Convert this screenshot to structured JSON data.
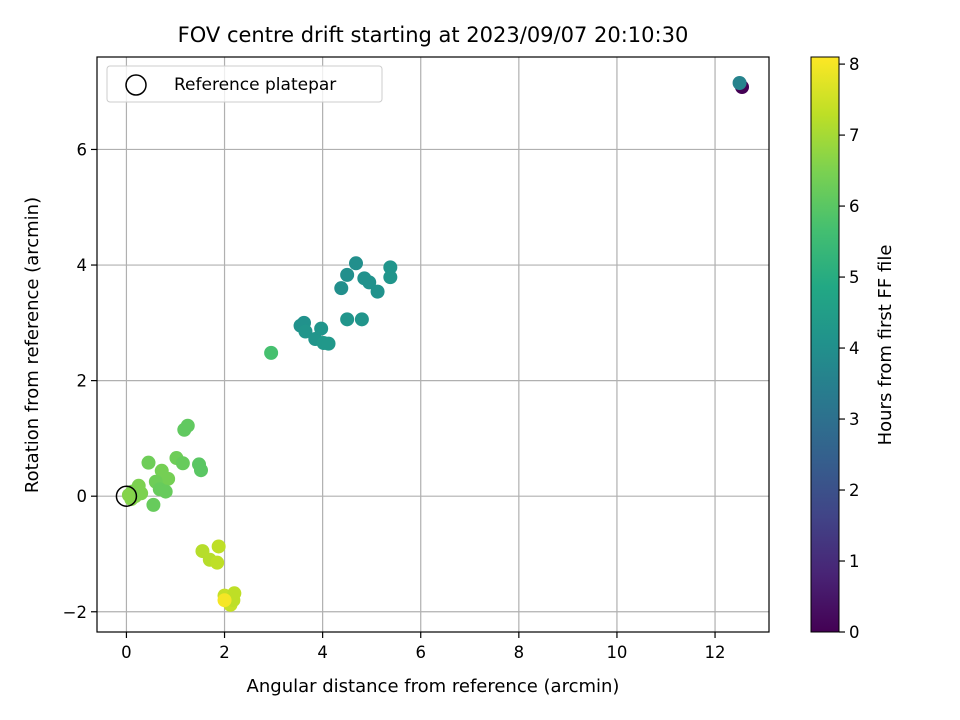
{
  "chart_data": {
    "type": "scatter",
    "title": "FOV centre drift starting at 2023/09/07 20:10:30",
    "xlabel": "Angular distance from reference (arcmin)",
    "ylabel": "Rotation from reference (arcmin)",
    "xlim": [
      -0.6,
      13.1
    ],
    "ylim": [
      -2.35,
      7.6
    ],
    "xticks": [
      0,
      2,
      4,
      6,
      8,
      10,
      12
    ],
    "yticks": [
      -2,
      0,
      2,
      4,
      6
    ],
    "xtick_labels": [
      "0",
      "2",
      "4",
      "6",
      "8",
      "10",
      "12"
    ],
    "ytick_labels": [
      "−2",
      "0",
      "2",
      "4",
      "6"
    ],
    "grid": true,
    "legend": {
      "placement": "upper-left",
      "entries": [
        "Reference platepar"
      ]
    },
    "colorbar": {
      "label": "Hours from first FF file",
      "colormap": "viridis",
      "range": [
        0,
        8.1
      ],
      "ticks": [
        0,
        1,
        2,
        3,
        4,
        5,
        6,
        7,
        8
      ],
      "tick_labels": [
        "0",
        "1",
        "2",
        "3",
        "4",
        "5",
        "6",
        "7",
        "8"
      ]
    },
    "reference_point": {
      "x": 0,
      "y": 0
    },
    "series": [
      {
        "points": [
          {
            "x": 12.55,
            "y": 7.08,
            "hours": 0.0
          },
          {
            "x": 12.5,
            "y": 7.15,
            "hours": 3.6
          },
          {
            "x": 2.95,
            "y": 2.48,
            "hours": 5.7
          },
          {
            "x": 3.55,
            "y": 2.95,
            "hours": 4.1
          },
          {
            "x": 3.62,
            "y": 3.0,
            "hours": 4.1
          },
          {
            "x": 3.65,
            "y": 2.85,
            "hours": 4.2
          },
          {
            "x": 3.85,
            "y": 2.72,
            "hours": 4.2
          },
          {
            "x": 3.97,
            "y": 2.9,
            "hours": 4.2
          },
          {
            "x": 4.02,
            "y": 2.65,
            "hours": 4.3
          },
          {
            "x": 4.12,
            "y": 2.64,
            "hours": 4.3
          },
          {
            "x": 4.38,
            "y": 3.6,
            "hours": 4.0
          },
          {
            "x": 4.5,
            "y": 3.83,
            "hours": 4.0
          },
          {
            "x": 4.68,
            "y": 4.03,
            "hours": 4.0
          },
          {
            "x": 4.5,
            "y": 3.06,
            "hours": 4.2
          },
          {
            "x": 4.8,
            "y": 3.06,
            "hours": 4.2
          },
          {
            "x": 4.85,
            "y": 3.77,
            "hours": 4.1
          },
          {
            "x": 4.95,
            "y": 3.7,
            "hours": 4.1
          },
          {
            "x": 5.12,
            "y": 3.54,
            "hours": 4.1
          },
          {
            "x": 5.38,
            "y": 3.96,
            "hours": 4.2
          },
          {
            "x": 5.38,
            "y": 3.79,
            "hours": 4.2
          },
          {
            "x": 0.45,
            "y": 0.58,
            "hours": 6.3
          },
          {
            "x": 1.02,
            "y": 0.66,
            "hours": 6.3
          },
          {
            "x": 1.15,
            "y": 0.57,
            "hours": 6.2
          },
          {
            "x": 1.18,
            "y": 1.15,
            "hours": 6.1
          },
          {
            "x": 1.25,
            "y": 1.22,
            "hours": 6.1
          },
          {
            "x": 1.48,
            "y": 0.55,
            "hours": 6.0
          },
          {
            "x": 1.52,
            "y": 0.45,
            "hours": 6.0
          },
          {
            "x": 0.72,
            "y": 0.44,
            "hours": 6.4
          },
          {
            "x": 0.85,
            "y": 0.3,
            "hours": 6.4
          },
          {
            "x": 0.6,
            "y": 0.25,
            "hours": 6.3
          },
          {
            "x": 0.68,
            "y": 0.12,
            "hours": 6.2
          },
          {
            "x": 0.8,
            "y": 0.08,
            "hours": 6.2
          },
          {
            "x": 0.55,
            "y": -0.15,
            "hours": 6.2
          },
          {
            "x": 0.25,
            "y": 0.18,
            "hours": 6.5
          },
          {
            "x": 0.12,
            "y": 0.08,
            "hours": 6.5
          },
          {
            "x": 0.05,
            "y": 0.02,
            "hours": 6.6
          },
          {
            "x": 0.1,
            "y": -0.05,
            "hours": 6.6
          },
          {
            "x": 0.18,
            "y": 0.0,
            "hours": 6.6
          },
          {
            "x": 0.3,
            "y": 0.05,
            "hours": 6.5
          },
          {
            "x": 1.55,
            "y": -0.95,
            "hours": 7.2
          },
          {
            "x": 1.7,
            "y": -1.1,
            "hours": 7.2
          },
          {
            "x": 1.85,
            "y": -1.15,
            "hours": 7.3
          },
          {
            "x": 1.88,
            "y": -0.87,
            "hours": 7.3
          },
          {
            "x": 2.0,
            "y": -1.72,
            "hours": 7.4
          },
          {
            "x": 2.12,
            "y": -1.88,
            "hours": 7.4
          },
          {
            "x": 2.2,
            "y": -1.68,
            "hours": 7.3
          },
          {
            "x": 2.18,
            "y": -1.8,
            "hours": 7.3
          },
          {
            "x": 2.0,
            "y": -1.8,
            "hours": 8.0
          }
        ]
      }
    ]
  }
}
